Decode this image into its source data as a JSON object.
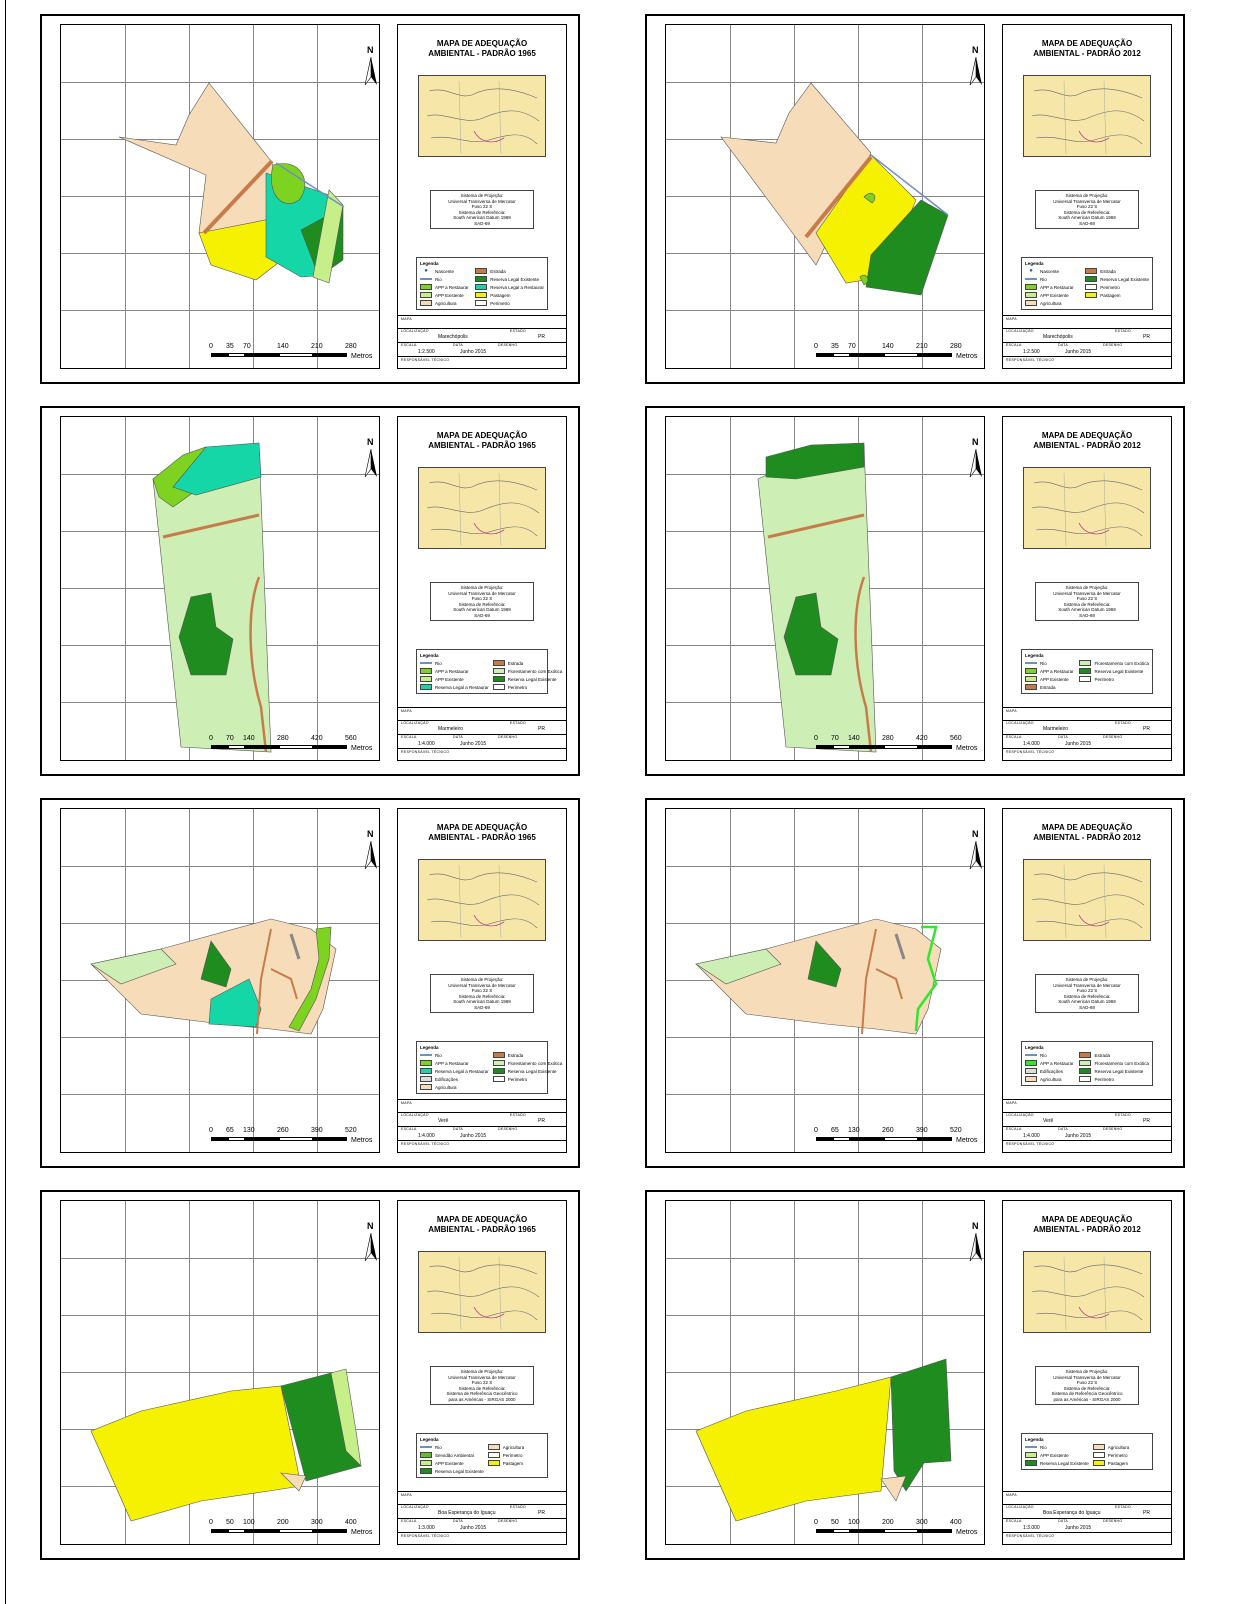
{
  "page": {
    "accent_colors": {
      "agricultura": "#f6dcb8",
      "pastagem": "#f5f100",
      "rle": "#1e8c1e",
      "rlr": "#14d6a6",
      "app_existente": "#c6ef8a",
      "app_restaurar": "#7ed321",
      "florestamento": "#cdeeb4",
      "estrada": "#c77b4a",
      "rio": "#6f8fbf"
    }
  },
  "panels": [
    {
      "title_line1": "MAPA DE ADEQUAÇÃO",
      "title_line2": "AMBIENTAL - PADRÃO 1965",
      "proj": [
        "Sistema de Projeção:",
        "Universal Transversa de Mercator",
        "Fuso 22 S",
        "Sistema de Referência:",
        "South American Datum 1969",
        "SAD-69"
      ],
      "legend_title": "Legenda",
      "legend": [
        {
          "label": "Nascente",
          "kind": "point",
          "color": "#1e5aa8"
        },
        {
          "label": "Estrada",
          "kind": "fill",
          "color": "#c77b4a"
        },
        {
          "label": "Rio",
          "kind": "line",
          "color": "#6f8fbf"
        },
        {
          "label": "Reserva Legal Existente",
          "kind": "fill",
          "color": "#1e8c1e"
        },
        {
          "label": "APP a Restaurar",
          "kind": "fill",
          "color": "#7ed321"
        },
        {
          "label": "Reserva Legal a Restaurar",
          "kind": "fill",
          "color": "#14d6a6"
        },
        {
          "label": "APP Existente",
          "kind": "fill",
          "color": "#c6ef8a"
        },
        {
          "label": "Pastagem",
          "kind": "fill",
          "color": "#f5f100"
        },
        {
          "label": "Agricultura",
          "kind": "fill",
          "color": "#f6dcb8"
        },
        {
          "label": "Perimetro",
          "kind": "fill",
          "color": "#ffffff"
        }
      ],
      "scale": [
        "0",
        "35",
        "70",
        "140",
        "210",
        "280"
      ],
      "scale_unit": "Metros",
      "localizacao": "Marechópolis",
      "estado": "PR",
      "escala": "1:2.500",
      "data": "Junho 2015"
    },
    {
      "title_line1": "MAPA DE ADEQUAÇÃO",
      "title_line2": "AMBIENTAL - PADRÃO 2012",
      "proj": [
        "Sistema de Projeção:",
        "Universal Transversa de Mercator",
        "Fuso 22 S",
        "Sistema de Referência:",
        "South American Datum 1969",
        "SAD-69"
      ],
      "legend_title": "Legenda",
      "legend": [
        {
          "label": "Nascente",
          "kind": "point",
          "color": "#1e5aa8"
        },
        {
          "label": "Estrada",
          "kind": "fill",
          "color": "#c77b4a"
        },
        {
          "label": "Rio",
          "kind": "line",
          "color": "#6f8fbf"
        },
        {
          "label": "Reserva Legal Existente",
          "kind": "fill",
          "color": "#1e8c1e"
        },
        {
          "label": "APP a Restaurar",
          "kind": "fill",
          "color": "#7ed321"
        },
        {
          "label": "Perimetro",
          "kind": "fill",
          "color": "#ffffff"
        },
        {
          "label": "APP Existente",
          "kind": "fill",
          "color": "#c6ef8a"
        },
        {
          "label": "Pastagem",
          "kind": "fill",
          "color": "#f5f100"
        },
        {
          "label": "Agricultura",
          "kind": "fill",
          "color": "#f6dcb8"
        }
      ],
      "scale": [
        "0",
        "35",
        "70",
        "140",
        "210",
        "280"
      ],
      "scale_unit": "Metros",
      "localizacao": "Marechópolis",
      "estado": "PR",
      "escala": "1:2.500",
      "data": "Junho 2015"
    },
    {
      "title_line1": "MAPA DE ADEQUAÇÃO",
      "title_line2": "AMBIENTAL - PADRÃO 1965",
      "proj": [
        "Sistema de Projeção:",
        "Universal Transversa de Mercator",
        "Fuso 22 S",
        "Sistema de Referência:",
        "South American Datum 1969",
        "SAD-69"
      ],
      "legend_title": "Legenda",
      "legend": [
        {
          "label": "Rio",
          "kind": "line",
          "color": "#6f8fbf"
        },
        {
          "label": "Estrada",
          "kind": "fill",
          "color": "#c77b4a"
        },
        {
          "label": "APP a Restaurar",
          "kind": "fill",
          "color": "#7ed321"
        },
        {
          "label": "Florestamento com Exótica",
          "kind": "fill",
          "color": "#cdeeb4"
        },
        {
          "label": "APP Existente",
          "kind": "fill",
          "color": "#c6ef8a"
        },
        {
          "label": "Reserva Legal Existente",
          "kind": "fill",
          "color": "#1e8c1e"
        },
        {
          "label": "Reserva Legal a Restaurar",
          "kind": "fill",
          "color": "#14d6a6"
        },
        {
          "label": "Perimetro",
          "kind": "fill",
          "color": "#ffffff"
        }
      ],
      "scale": [
        "0",
        "70",
        "140",
        "280",
        "420",
        "560"
      ],
      "scale_unit": "Metros",
      "localizacao": "Marmeleiro",
      "estado": "PR",
      "escala": "1:4.000",
      "data": "Junho 2015"
    },
    {
      "title_line1": "MAPA DE ADEQUAÇÃO",
      "title_line2": "AMBIENTAL - PADRÃO 2012",
      "proj": [
        "Sistema de Projeção:",
        "Universal Transversa de Mercator",
        "Fuso 22 S",
        "Sistema de Referência:",
        "South American Datum 1969",
        "SAD-69"
      ],
      "legend_title": "Legenda",
      "legend": [
        {
          "label": "Rio",
          "kind": "line",
          "color": "#6f8fbf"
        },
        {
          "label": "Florestamento com Exótica",
          "kind": "fill",
          "color": "#cdeeb4"
        },
        {
          "label": "APP a Restaurar",
          "kind": "fill",
          "color": "#7ed321"
        },
        {
          "label": "Reserva Legal Existente",
          "kind": "fill",
          "color": "#1e8c1e"
        },
        {
          "label": "APP Existente",
          "kind": "fill",
          "color": "#c6ef8a"
        },
        {
          "label": "Perimetro",
          "kind": "fill",
          "color": "#ffffff"
        },
        {
          "label": "Estrada",
          "kind": "fill",
          "color": "#c77b4a"
        }
      ],
      "scale": [
        "0",
        "70",
        "140",
        "280",
        "420",
        "560"
      ],
      "scale_unit": "Metros",
      "localizacao": "Marmeleiro",
      "estado": "PR",
      "escala": "1:4.000",
      "data": "Junho 2015"
    },
    {
      "title_line1": "MAPA DE ADEQUAÇÃO",
      "title_line2": "AMBIENTAL - PADRÃO 1965",
      "proj": [
        "Sistema de Projeção:",
        "Universal Transversa de Mercator",
        "Fuso 22 S",
        "Sistema de Referência:",
        "South American Datum 1969",
        "SAD-69"
      ],
      "legend_title": "Legenda",
      "legend": [
        {
          "label": "Rio",
          "kind": "line",
          "color": "#6f8fbf"
        },
        {
          "label": "Estrada",
          "kind": "fill",
          "color": "#c77b4a"
        },
        {
          "label": "APP a Restaurar",
          "kind": "fill",
          "color": "#7ed321"
        },
        {
          "label": "Florestamento com Exótica",
          "kind": "fill",
          "color": "#cdeeb4"
        },
        {
          "label": "Reserva Legal a Restaurar",
          "kind": "fill",
          "color": "#14d6a6"
        },
        {
          "label": "Reserva Legal Existente",
          "kind": "fill",
          "color": "#1e8c1e"
        },
        {
          "label": "Edificações",
          "kind": "fill",
          "color": "#dddddd"
        },
        {
          "label": "Perimetro",
          "kind": "fill",
          "color": "#ffffff"
        },
        {
          "label": "Agricultura",
          "kind": "fill",
          "color": "#f6dcb8"
        }
      ],
      "scale": [
        "0",
        "65",
        "130",
        "260",
        "390",
        "520"
      ],
      "scale_unit": "Metros",
      "localizacao": "Verê",
      "estado": "PR",
      "escala": "1:4.000",
      "data": "Junho 2015"
    },
    {
      "title_line1": "MAPA DE ADEQUAÇÃO",
      "title_line2": "AMBIENTAL - PADRÃO 2012",
      "proj": [
        "Sistema de Projeção:",
        "Universal Transversa de Mercator",
        "Fuso 22 S",
        "Sistema de Referência:",
        "South American Datum 1969",
        "SAD-69"
      ],
      "legend_title": "Legenda",
      "legend": [
        {
          "label": "Rio",
          "kind": "line",
          "color": "#6f8fbf"
        },
        {
          "label": "Estrada",
          "kind": "fill",
          "color": "#c77b4a"
        },
        {
          "label": "APP a Restaurar",
          "kind": "fill",
          "color": "#2ee82e"
        },
        {
          "label": "Florestamento com Exótica",
          "kind": "fill",
          "color": "#cdeeb4"
        },
        {
          "label": "Edificações",
          "kind": "fill",
          "color": "#dddddd"
        },
        {
          "label": "Reserva Legal Existente",
          "kind": "fill",
          "color": "#1e8c1e"
        },
        {
          "label": "Agricultura",
          "kind": "fill",
          "color": "#f6dcb8"
        },
        {
          "label": "Perimetro",
          "kind": "fill",
          "color": "#ffffff"
        }
      ],
      "scale": [
        "0",
        "65",
        "130",
        "260",
        "390",
        "520"
      ],
      "scale_unit": "Metros",
      "localizacao": "Verê",
      "estado": "PR",
      "escala": "1:4.000",
      "data": "Junho 2015"
    },
    {
      "title_line1": "MAPA DE ADEQUAÇÃO",
      "title_line2": "AMBIENTAL - PADRÃO 1965",
      "proj": [
        "Sistema de Projeção:",
        "Universal Transversa de Mercator",
        "Fuso 22 S",
        "Sistema de Referência:",
        "Sistema de Referência Geocêntrico",
        "para as Américas - SIRGAS 2000"
      ],
      "legend_title": "Legenda",
      "legend": [
        {
          "label": "Rio",
          "kind": "line",
          "color": "#6f8fbf"
        },
        {
          "label": "Agricultura",
          "kind": "fill",
          "color": "#f6dcb8"
        },
        {
          "label": "Servidão Ambiental",
          "kind": "fill",
          "color": "#5fbf2e"
        },
        {
          "label": "Perímetro",
          "kind": "fill",
          "color": "#ffffff"
        },
        {
          "label": "APP Existente",
          "kind": "fill",
          "color": "#c6ef8a"
        },
        {
          "label": "Pastagem",
          "kind": "fill",
          "color": "#f5f100"
        },
        {
          "label": "Reserva Legal Existente",
          "kind": "fill",
          "color": "#1e8c1e"
        }
      ],
      "scale": [
        "0",
        "50",
        "100",
        "200",
        "300",
        "400"
      ],
      "scale_unit": "Metros",
      "localizacao": "Boa Esperança do Iguaçu",
      "estado": "PR",
      "escala": "1:3.000",
      "data": "Junho 2015"
    },
    {
      "title_line1": "MAPA DE ADEQUAÇÃO",
      "title_line2": "AMBIENTAL - PADRÃO 2012",
      "proj": [
        "Sistema de Projeção:",
        "Universal Transversa de Mercator",
        "Fuso 22 S",
        "Sistema de Referência:",
        "Sistema de Referência Geocêntrico",
        "para as Américas - SIRGAS 2000"
      ],
      "legend_title": "Legenda",
      "legend": [
        {
          "label": "Rio",
          "kind": "line",
          "color": "#6f8fbf"
        },
        {
          "label": "Agricultura",
          "kind": "fill",
          "color": "#f6dcb8"
        },
        {
          "label": "APP Existente",
          "kind": "fill",
          "color": "#c6ef8a"
        },
        {
          "label": "Perímetro",
          "kind": "fill",
          "color": "#ffffff"
        },
        {
          "label": "Reserva Legal Existente",
          "kind": "fill",
          "color": "#1e8c1e"
        },
        {
          "label": "Pastagem",
          "kind": "fill",
          "color": "#f5f100"
        }
      ],
      "scale": [
        "0",
        "50",
        "100",
        "200",
        "300",
        "400"
      ],
      "scale_unit": "Metros",
      "localizacao": "Boa Esperança do Iguaçu",
      "estado": "PR",
      "escala": "1:3.000",
      "data": "Junho 2015"
    }
  ],
  "titleblock_labels": {
    "mapa": "MAPA",
    "localizacao": "LOCALIZAÇÃO",
    "estado": "ESTADO",
    "escala": "ESCALA",
    "data": "DATA",
    "desenho": "DESENHO",
    "responsavel": "RESPONSÁVEL TÉCNICO"
  },
  "north_label": "N"
}
